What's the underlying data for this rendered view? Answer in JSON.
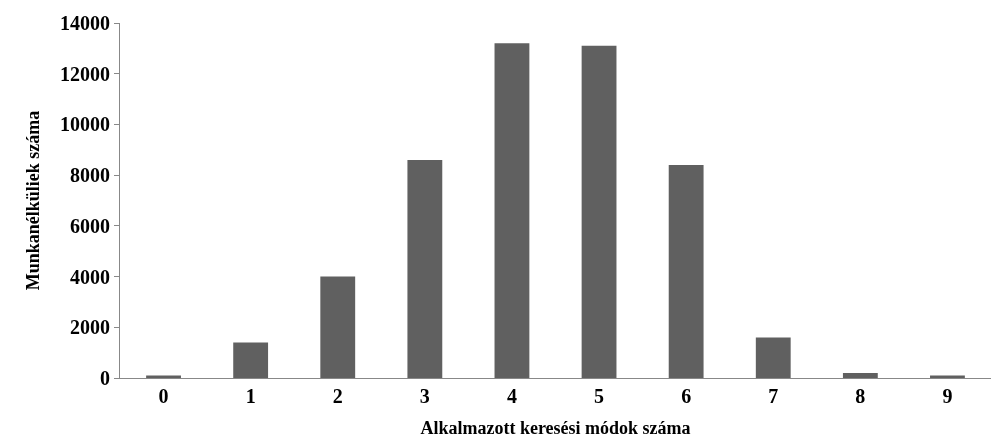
{
  "chart_data": {
    "type": "bar",
    "xlabel": "Alkalmazott keresési módok száma",
    "ylabel": "Munkanélküliek száma",
    "categories": [
      "0",
      "1",
      "2",
      "3",
      "4",
      "5",
      "6",
      "7",
      "8",
      "9"
    ],
    "values": [
      100,
      1400,
      4000,
      8600,
      13200,
      13100,
      8400,
      1600,
      200,
      100
    ],
    "color": "#606060",
    "ylim": [
      0,
      14000
    ],
    "yticks": [
      0,
      2000,
      4000,
      6000,
      8000,
      10000,
      12000,
      14000
    ]
  }
}
